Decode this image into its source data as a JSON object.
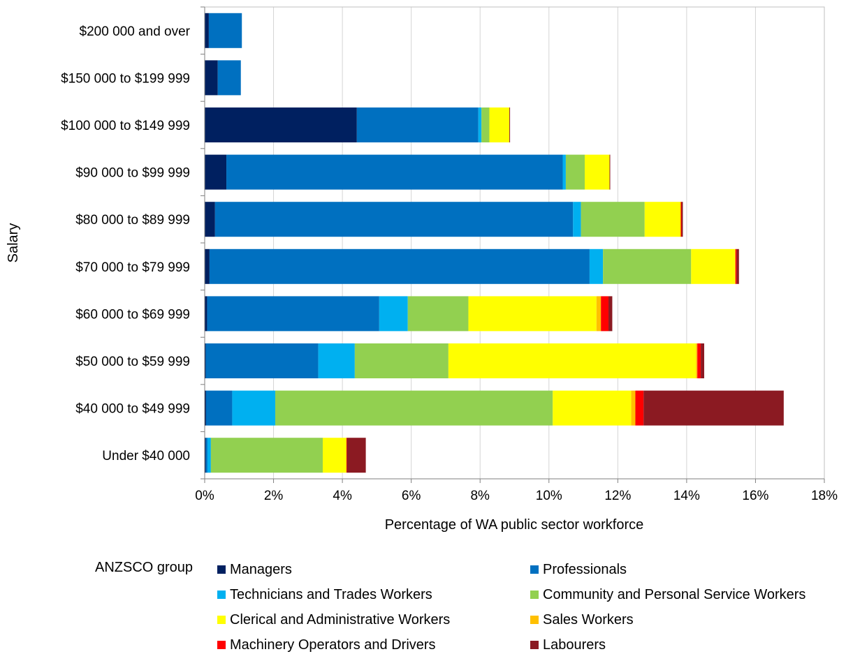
{
  "chart_data": {
    "type": "bar",
    "orientation": "horizontal",
    "stacked": true,
    "xlabel": "Percentage of WA public sector workforce",
    "ylabel": "Salary",
    "xlim": [
      0,
      18
    ],
    "x_ticks": [
      "0%",
      "2%",
      "4%",
      "6%",
      "8%",
      "10%",
      "12%",
      "14%",
      "16%",
      "18%"
    ],
    "grid": "vertical",
    "legend_title": "ANZSCO group",
    "legend_position": "bottom",
    "categories": [
      "$200 000 and over",
      "$150 000 to $199 999",
      "$100 000 to $149 999",
      "$90 000 to $99 999",
      "$80 000 to $89 999",
      "$70 000 to $79 999",
      "$60 000 to $69 999",
      "$50 000 to $59 999",
      "$40 000 to $49 999",
      "Under $40 000"
    ],
    "series": [
      {
        "name": "Managers",
        "color": "#002060",
        "values": [
          0.12,
          0.38,
          4.42,
          0.63,
          0.3,
          0.14,
          0.07,
          0.03,
          0.04,
          0.03
        ]
      },
      {
        "name": "Professionals",
        "color": "#0070C0",
        "values": [
          0.96,
          0.67,
          3.53,
          9.77,
          10.4,
          11.04,
          5.0,
          3.27,
          0.76,
          0.05
        ]
      },
      {
        "name": "Technicians and Trades Workers",
        "color": "#00B0F0",
        "values": [
          0.0,
          0.0,
          0.09,
          0.09,
          0.23,
          0.39,
          0.83,
          1.06,
          1.25,
          0.1
        ]
      },
      {
        "name": "Community and Personal Service Workers",
        "color": "#92D050",
        "values": [
          0.0,
          0.0,
          0.23,
          0.55,
          1.85,
          2.56,
          1.76,
          2.72,
          8.06,
          3.25
        ]
      },
      {
        "name": "Clerical and Administrative Workers",
        "color": "#FFFF00",
        "values": [
          0.0,
          0.0,
          0.58,
          0.72,
          1.04,
          1.27,
          3.72,
          7.19,
          2.28,
          0.68
        ]
      },
      {
        "name": "Sales Workers",
        "color": "#FFC000",
        "values": [
          0.0,
          0.0,
          0.0,
          0.0,
          0.01,
          0.02,
          0.13,
          0.04,
          0.12,
          0.01
        ]
      },
      {
        "name": "Machinery Operators and Drivers",
        "color": "#FF0000",
        "values": [
          0.0,
          0.0,
          0.0,
          0.0,
          0.02,
          0.03,
          0.22,
          0.1,
          0.24,
          0.01
        ]
      },
      {
        "name": "Labourers",
        "color": "#8B1A22",
        "values": [
          0.0,
          0.0,
          0.02,
          0.02,
          0.04,
          0.07,
          0.11,
          0.1,
          4.07,
          0.55
        ]
      }
    ]
  }
}
